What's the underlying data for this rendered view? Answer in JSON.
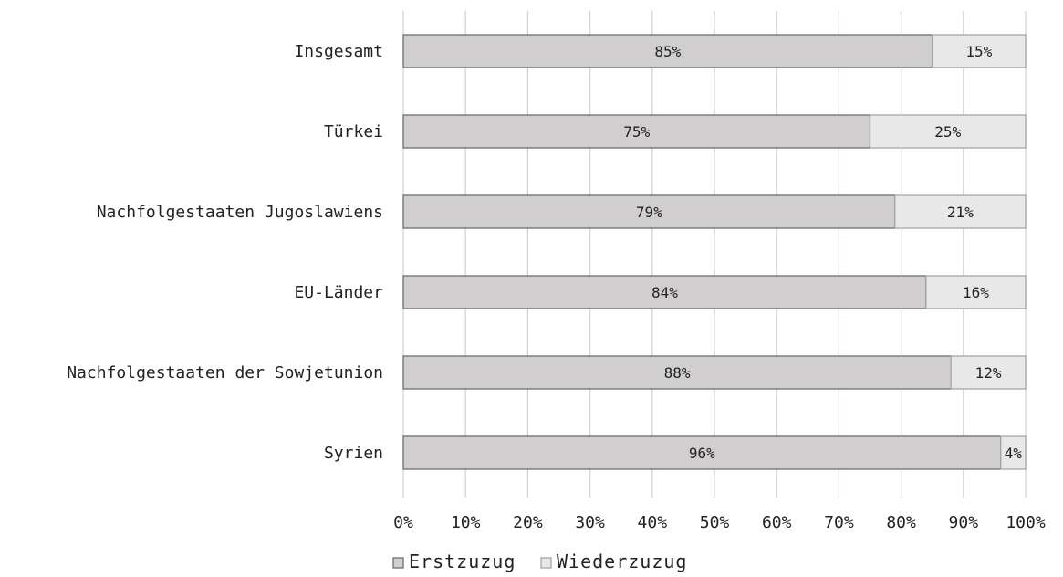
{
  "chart_data": {
    "type": "bar",
    "orientation": "horizontal",
    "stacked": true,
    "categories": [
      "Insgesamt",
      "Türkei",
      "Nachfolgestaaten Jugoslawiens",
      "EU-Länder",
      "Nachfolgestaaten der Sowjetunion",
      "Syrien"
    ],
    "series": [
      {
        "name": "Erstzuzug",
        "values": [
          85,
          75,
          79,
          84,
          88,
          96
        ],
        "labels": [
          "85%",
          "75%",
          "79%",
          "84%",
          "88%",
          "96%"
        ],
        "color": "#d0cece",
        "stroke": "#6f6f6f"
      },
      {
        "name": "Wiederzuzug",
        "values": [
          15,
          25,
          21,
          16,
          12,
          4
        ],
        "labels": [
          "15%",
          "25%",
          "21%",
          "16%",
          "12%",
          "4%"
        ],
        "color": "#e8e8e8",
        "stroke": "#a6a6a6"
      }
    ],
    "xlim": [
      0,
      100
    ],
    "ticks": [
      0,
      10,
      20,
      30,
      40,
      50,
      60,
      70,
      80,
      90,
      100
    ],
    "tick_labels": [
      "0%",
      "10%",
      "20%",
      "30%",
      "40%",
      "50%",
      "60%",
      "70%",
      "80%",
      "90%",
      "100%"
    ],
    "title": "",
    "xlabel": "",
    "ylabel": "",
    "grid": true,
    "legend_position": "bottom"
  }
}
